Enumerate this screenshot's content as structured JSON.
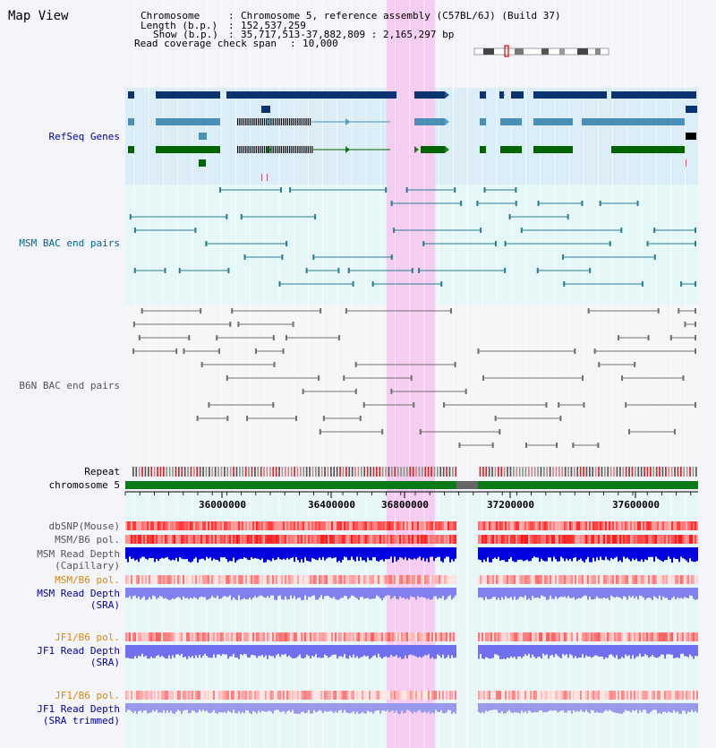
{
  "page_title": "Map View",
  "info": {
    "chromosome_key": "Chromosome",
    "chromosome_val": "Chromosome 5, reference assembly (C57BL/6J) (Build 37)",
    "length_key": "Length (b.p.)",
    "length_val": "152,537,259",
    "show_key": "Show (b.p.)",
    "show_val": "35,717,513-37,882,809 : 2,165,297 bp",
    "span_key": "Read coverage check span",
    "span_val": "10,000"
  },
  "tracks": {
    "refseq": "RefSeq Genes",
    "msm_bac": "MSM BAC end pairs",
    "b6n_bac": "B6N BAC end pairs",
    "repeat": "Repeat",
    "chromosome": "chromosome 5",
    "dbsnp": "dbSNP(Mouse)",
    "msm_pol1": "MSM/B6 pol.",
    "msm_depth_cap_1": "MSM Read Depth",
    "msm_depth_cap_2": "(Capillary)",
    "msm_pol2": "MSM/B6 pol.",
    "msm_depth_sra_1": "MSM Read Depth",
    "msm_depth_sra_2": "(SRA)",
    "jf1_pol1": "JF1/B6 pol.",
    "jf1_depth_sra_1": "JF1 Read Depth",
    "jf1_depth_sra_2": "(SRA)",
    "jf1_pol2": "JF1/B6 pol.",
    "jf1_depth_trim_1": "JF1 Read Depth",
    "jf1_depth_trim_2": "(SRA trimmed)"
  },
  "axis": {
    "ticks": [
      "36000000",
      "36400000",
      "36800000",
      "37200000",
      "37600000"
    ]
  },
  "colors": {
    "label_blue": "#0000aa",
    "label_teal": "#006688",
    "label_orange": "#dd8800",
    "gene_navy": "#0a3370",
    "gene_steel": "#4a8fb5",
    "gene_green": "#006400",
    "highlight": "#f5cdf0"
  }
}
